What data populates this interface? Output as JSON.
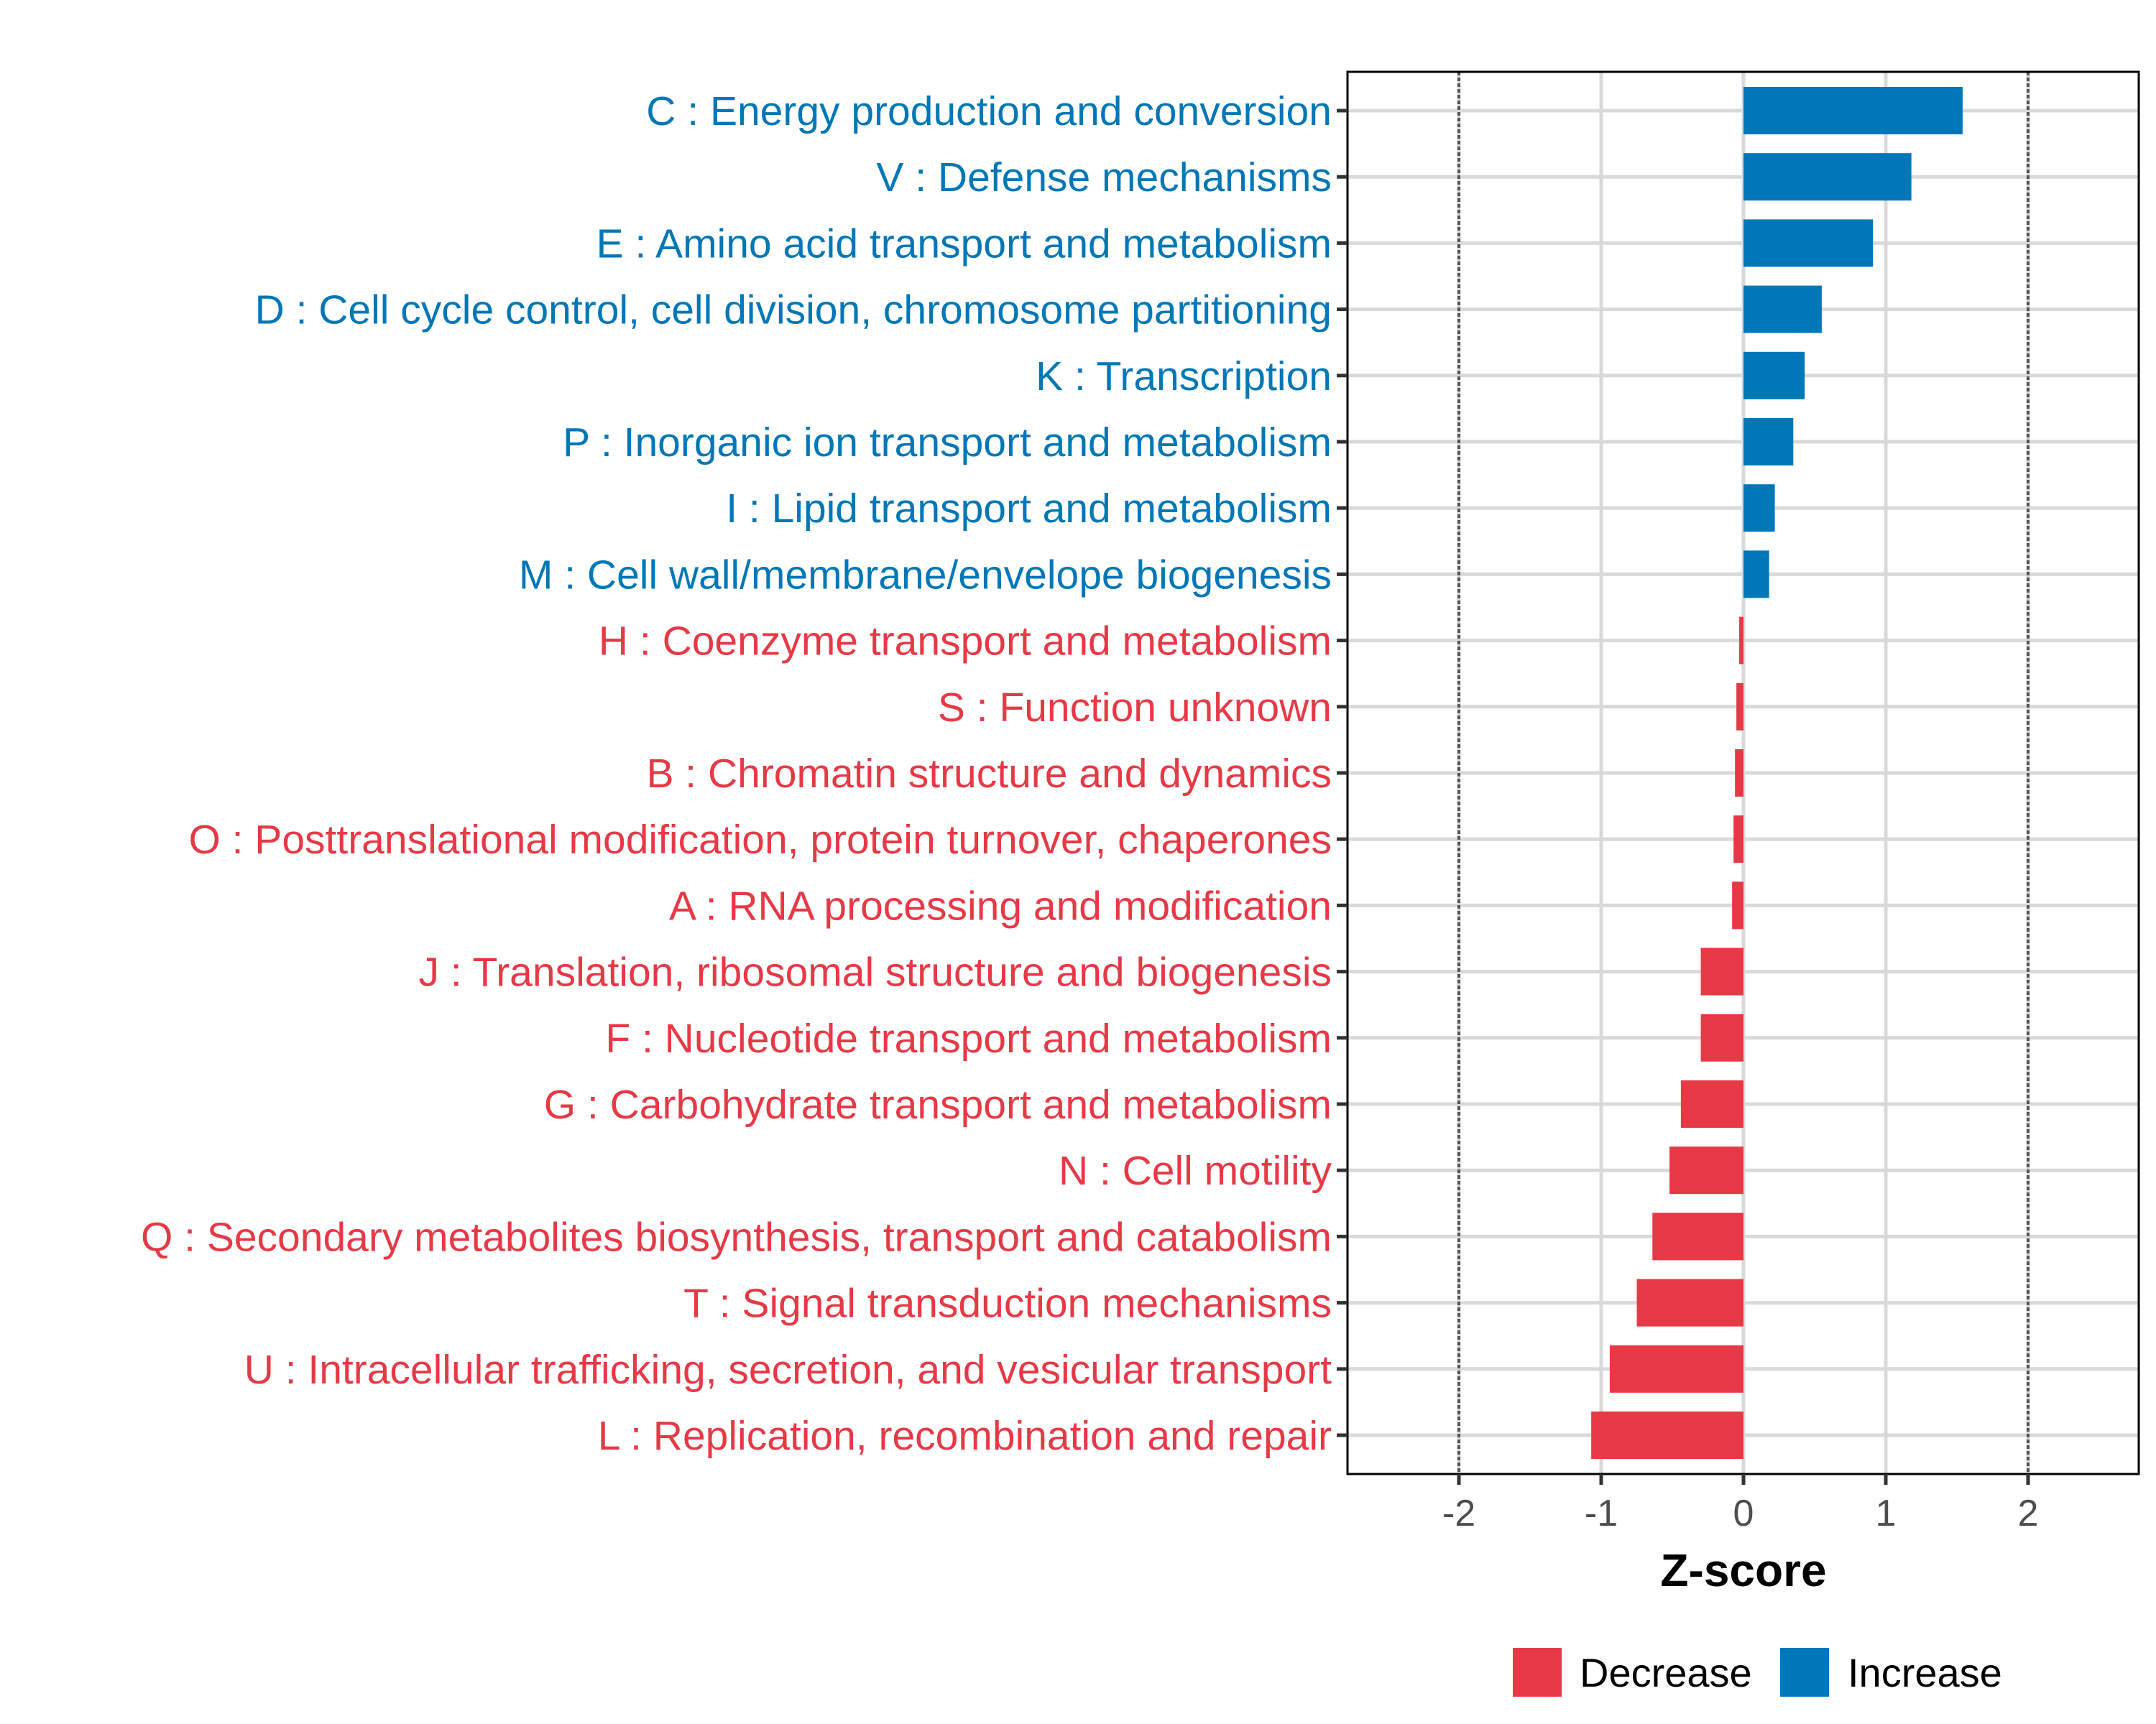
{
  "colors": {
    "decrease": "#E63946",
    "increase": "#0077B6"
  },
  "chart_data": {
    "type": "bar",
    "orientation": "horizontal",
    "title": "",
    "xlabel": "Z-score",
    "ylabel": "",
    "xlim": [
      -2.8,
      2.8
    ],
    "x_ticks": [
      -2,
      -1,
      0,
      1,
      2
    ],
    "x_tick_labels": [
      "-2",
      "-1",
      "0",
      "1",
      "2"
    ],
    "reference_lines": [
      -2,
      2
    ],
    "grid": true,
    "legend": {
      "placement": "bottom",
      "entries": [
        "Decrease",
        "Increase"
      ]
    },
    "categories": [
      "C : Energy production and conversion",
      "V : Defense mechanisms",
      "E : Amino acid transport and metabolism",
      "D : Cell cycle control, cell division, chromosome partitioning",
      "K : Transcription",
      "P : Inorganic ion transport and metabolism",
      "I : Lipid transport and metabolism",
      "M : Cell wall/membrane/envelope biogenesis",
      "H : Coenzyme transport and metabolism",
      "S : Function unknown",
      "B : Chromatin structure and dynamics",
      "O : Posttranslational modification, protein turnover, chaperones",
      "A : RNA processing and modification",
      "J : Translation, ribosomal structure and biogenesis",
      "F : Nucleotide transport and metabolism",
      "G : Carbohydrate transport and metabolism",
      "N : Cell motility",
      "Q : Secondary metabolites biosynthesis, transport and catabolism",
      "T : Signal transduction mechanisms",
      "U : Intracellular trafficking, secretion, and vesicular transport",
      "L : Replication, recombination and repair"
    ],
    "values": [
      1.54,
      1.18,
      0.91,
      0.55,
      0.43,
      0.35,
      0.22,
      0.18,
      -0.03,
      -0.05,
      -0.06,
      -0.07,
      -0.08,
      -0.3,
      -0.3,
      -0.44,
      -0.52,
      -0.64,
      -0.75,
      -0.94,
      -1.07
    ],
    "groups": [
      "Increase",
      "Increase",
      "Increase",
      "Increase",
      "Increase",
      "Increase",
      "Increase",
      "Increase",
      "Decrease",
      "Decrease",
      "Decrease",
      "Decrease",
      "Decrease",
      "Decrease",
      "Decrease",
      "Decrease",
      "Decrease",
      "Decrease",
      "Decrease",
      "Decrease",
      "Decrease"
    ]
  }
}
